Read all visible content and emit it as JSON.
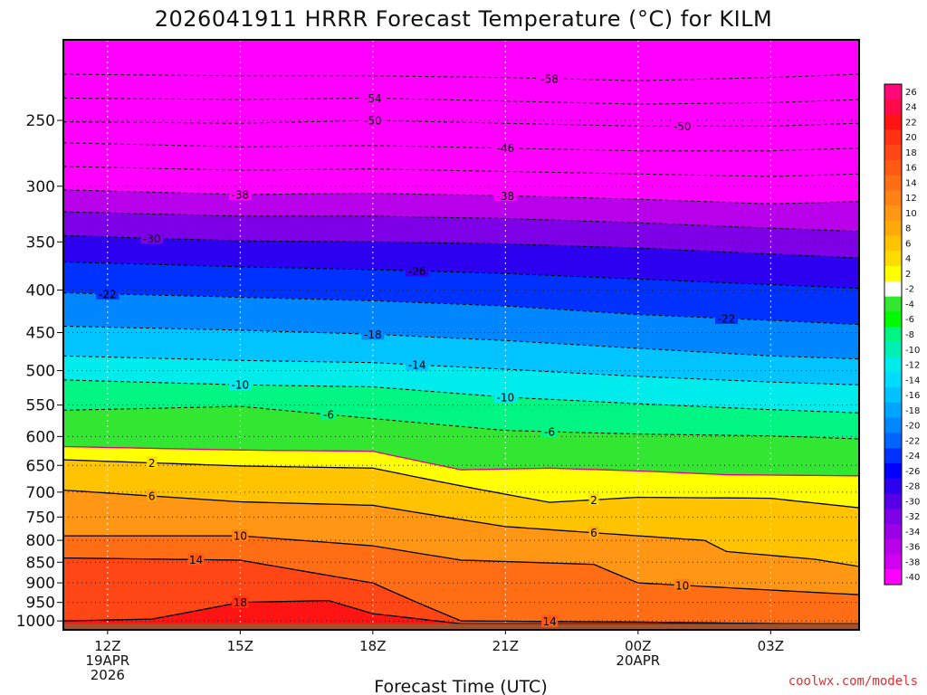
{
  "chart_data": {
    "type": "heatmap",
    "title": "2026041911 HRRR Forecast Temperature (°C) for KILM",
    "xlabel": "Forecast Time (UTC)",
    "ylabel": "",
    "x_ticks": [
      {
        "hour": 0,
        "lines": [
          "12Z",
          "19APR",
          "2026"
        ]
      },
      {
        "hour": 3,
        "lines": [
          "15Z"
        ]
      },
      {
        "hour": 6,
        "lines": [
          "18Z"
        ]
      },
      {
        "hour": 9,
        "lines": [
          "21Z"
        ]
      },
      {
        "hour": 12,
        "lines": [
          "00Z",
          "20APR"
        ]
      },
      {
        "hour": 15,
        "lines": [
          "03Z"
        ]
      }
    ],
    "x_range_hours": [
      -1,
      17
    ],
    "y_ticks": [
      "250",
      "300",
      "350",
      "400",
      "450",
      "500",
      "550",
      "600",
      "650",
      "700",
      "750",
      "800",
      "850",
      "900",
      "950",
      "1000"
    ],
    "y_axis": "pressure (hPa), log scale, inverted",
    "y_range": [
      200,
      1025
    ],
    "colorbar": {
      "levels": [
        26,
        24,
        22,
        20,
        18,
        16,
        14,
        12,
        10,
        8,
        6,
        4,
        2,
        -2,
        -4,
        -6,
        -8,
        -10,
        -12,
        -14,
        -16,
        -18,
        -20,
        -22,
        -24,
        -26,
        -28,
        -30,
        -32,
        -34,
        -36,
        -38,
        -40
      ],
      "colors": [
        "#ff0a78",
        "#ff0a4b",
        "#ff1414",
        "#ff3214",
        "#ff4614",
        "#ff5a14",
        "#ff6e14",
        "#ff8214",
        "#ff9614",
        "#ffaa0a",
        "#ffc300",
        "#ffdc00",
        "#ffff00",
        "#ffffff",
        "#32e632",
        "#00fa00",
        "#00f582",
        "#00f0b4",
        "#00ebeb",
        "#00dcff",
        "#00c3ff",
        "#00a5ff",
        "#0087ff",
        "#0064ff",
        "#0032ff",
        "#0000ff",
        "#2d00f0",
        "#5500e6",
        "#7d00e6",
        "#9b00e6",
        "#b900eb",
        "#d200f0",
        "#ff00ff"
      ]
    },
    "surface_color": "#a0522d",
    "isotherms": [
      {
        "t": -58,
        "dashed": true,
        "p": [
          [
            -1,
            220
          ],
          [
            3,
            221
          ],
          [
            6,
            221
          ],
          [
            9,
            222
          ],
          [
            12,
            224
          ],
          [
            15,
            222
          ],
          [
            17,
            220
          ]
        ],
        "labels": [
          [
            10,
            -58
          ]
        ]
      },
      {
        "t": -54,
        "dashed": true,
        "p": [
          [
            -1,
            235
          ],
          [
            3,
            236
          ],
          [
            6,
            235
          ],
          [
            9,
            237
          ],
          [
            12,
            239
          ],
          [
            15,
            238
          ],
          [
            17,
            236
          ]
        ],
        "labels": [
          [
            6,
            -54
          ]
        ]
      },
      {
        "t": -50,
        "dashed": true,
        "p": [
          [
            -1,
            251
          ],
          [
            3,
            252
          ],
          [
            6,
            250
          ],
          [
            9,
            252
          ],
          [
            12,
            254
          ],
          [
            15,
            254
          ],
          [
            17,
            252
          ]
        ],
        "labels": [
          [
            6,
            -50
          ],
          [
            13,
            -50
          ]
        ]
      },
      {
        "t": -46,
        "dashed": true,
        "p": [
          [
            -1,
            266
          ],
          [
            3,
            269
          ],
          [
            6,
            268
          ],
          [
            9,
            270
          ],
          [
            12,
            272
          ],
          [
            15,
            272
          ],
          [
            17,
            270
          ]
        ],
        "labels": [
          [
            9,
            -46
          ]
        ]
      },
      {
        "t": -42,
        "dashed": true,
        "p": [
          [
            -1,
            284
          ],
          [
            3,
            287
          ],
          [
            6,
            286
          ],
          [
            9,
            288
          ],
          [
            12,
            290
          ],
          [
            15,
            292
          ],
          [
            17,
            290
          ]
        ],
        "labels": []
      },
      {
        "t": -38,
        "dashed": true,
        "p": [
          [
            -1,
            303
          ],
          [
            3,
            307
          ],
          [
            6,
            306
          ],
          [
            9,
            308
          ],
          [
            12,
            311
          ],
          [
            15,
            315
          ],
          [
            17,
            313
          ]
        ],
        "labels": [
          [
            3,
            -38
          ],
          [
            9,
            -38
          ]
        ]
      },
      {
        "t": -34,
        "dashed": true,
        "p": [
          [
            -1,
            322
          ],
          [
            3,
            326
          ],
          [
            6,
            326
          ],
          [
            9,
            328
          ],
          [
            12,
            332
          ],
          [
            15,
            337
          ],
          [
            17,
            340
          ]
        ],
        "labels": []
      },
      {
        "t": -30,
        "dashed": true,
        "p": [
          [
            -1,
            344
          ],
          [
            3,
            349
          ],
          [
            6,
            350
          ],
          [
            9,
            352
          ],
          [
            12,
            356
          ],
          [
            15,
            362
          ],
          [
            17,
            366
          ]
        ],
        "labels": [
          [
            1,
            -30
          ]
        ]
      },
      {
        "t": -26,
        "dashed": true,
        "p": [
          [
            -1,
            370
          ],
          [
            3,
            375
          ],
          [
            6,
            378
          ],
          [
            9,
            382
          ],
          [
            12,
            388
          ],
          [
            15,
            394
          ],
          [
            17,
            398
          ]
        ],
        "labels": [
          [
            7,
            -26
          ]
        ]
      },
      {
        "t": -22,
        "dashed": true,
        "p": [
          [
            -1,
            403
          ],
          [
            3,
            408
          ],
          [
            6,
            412
          ],
          [
            9,
            418
          ],
          [
            12,
            428
          ],
          [
            15,
            435
          ],
          [
            17,
            440
          ]
        ],
        "labels": [
          [
            0,
            -22
          ],
          [
            14,
            -22
          ]
        ]
      },
      {
        "t": -18,
        "dashed": true,
        "p": [
          [
            -1,
            442
          ],
          [
            3,
            447
          ],
          [
            6,
            452
          ],
          [
            9,
            460
          ],
          [
            12,
            470
          ],
          [
            15,
            480
          ],
          [
            17,
            484
          ]
        ],
        "labels": [
          [
            6,
            -18
          ]
        ]
      },
      {
        "t": -14,
        "dashed": true,
        "p": [
          [
            -1,
            480
          ],
          [
            3,
            486
          ],
          [
            6,
            489
          ],
          [
            9,
            498
          ],
          [
            12,
            508
          ],
          [
            15,
            516
          ],
          [
            17,
            520
          ]
        ],
        "labels": [
          [
            7,
            -14
          ]
        ]
      },
      {
        "t": -10,
        "dashed": true,
        "p": [
          [
            -1,
            513
          ],
          [
            3,
            520
          ],
          [
            6,
            523
          ],
          [
            9,
            538
          ],
          [
            12,
            548
          ],
          [
            15,
            557
          ],
          [
            17,
            562
          ]
        ],
        "labels": [
          [
            3,
            -10
          ],
          [
            9,
            -10
          ]
        ]
      },
      {
        "t": -6,
        "dashed": true,
        "p": [
          [
            -1,
            558
          ],
          [
            3,
            552
          ],
          [
            6,
            571
          ],
          [
            9,
            590
          ],
          [
            12,
            596
          ],
          [
            15,
            599
          ],
          [
            17,
            604
          ]
        ],
        "labels": [
          [
            5,
            -6
          ],
          [
            10,
            -6
          ]
        ]
      },
      {
        "t": 0,
        "dashed": false,
        "magenta": true,
        "p": [
          [
            -1,
            617
          ],
          [
            3,
            623
          ],
          [
            6,
            625
          ],
          [
            8,
            658
          ],
          [
            10,
            655
          ],
          [
            12,
            660
          ],
          [
            14,
            667
          ],
          [
            17,
            669
          ]
        ],
        "labels": []
      },
      {
        "t": 2,
        "dashed": false,
        "p": [
          [
            -1,
            640
          ],
          [
            3,
            651
          ],
          [
            6,
            655
          ],
          [
            8,
            688
          ],
          [
            10,
            720
          ],
          [
            12,
            710
          ],
          [
            15,
            712
          ],
          [
            17,
            731
          ]
        ],
        "labels": [
          [
            1,
            2
          ],
          [
            11,
            2
          ]
        ]
      },
      {
        "t": 6,
        "dashed": false,
        "p": [
          [
            -1,
            696
          ],
          [
            3,
            719
          ],
          [
            6,
            726
          ],
          [
            9,
            770
          ],
          [
            12,
            790
          ],
          [
            13.5,
            800
          ],
          [
            14,
            825
          ],
          [
            16,
            843
          ],
          [
            17,
            860
          ]
        ],
        "labels": [
          [
            1,
            6
          ],
          [
            11,
            6
          ]
        ]
      },
      {
        "t": 10,
        "dashed": false,
        "p": [
          [
            -1,
            790
          ],
          [
            3,
            790
          ],
          [
            6,
            812
          ],
          [
            8,
            845
          ],
          [
            11,
            855
          ],
          [
            12,
            900
          ],
          [
            14.5,
            915
          ],
          [
            17,
            930
          ]
        ],
        "labels": [
          [
            3,
            10
          ],
          [
            13,
            10
          ]
        ]
      },
      {
        "t": 14,
        "dashed": false,
        "p": [
          [
            -1,
            840
          ],
          [
            3,
            845
          ],
          [
            6,
            900
          ],
          [
            8,
            1000
          ],
          [
            12,
            1003
          ],
          [
            17,
            1010
          ]
        ],
        "labels": [
          [
            2,
            14
          ],
          [
            10,
            14
          ]
        ]
      },
      {
        "t": 18,
        "dashed": false,
        "p": [
          [
            -1,
            1000
          ],
          [
            1,
            995
          ],
          [
            3,
            950
          ],
          [
            5,
            945
          ],
          [
            6,
            980
          ],
          [
            8,
            1008
          ]
        ],
        "labels": [
          [
            3,
            18
          ]
        ]
      }
    ]
  },
  "credit": "coolwx.com/models"
}
